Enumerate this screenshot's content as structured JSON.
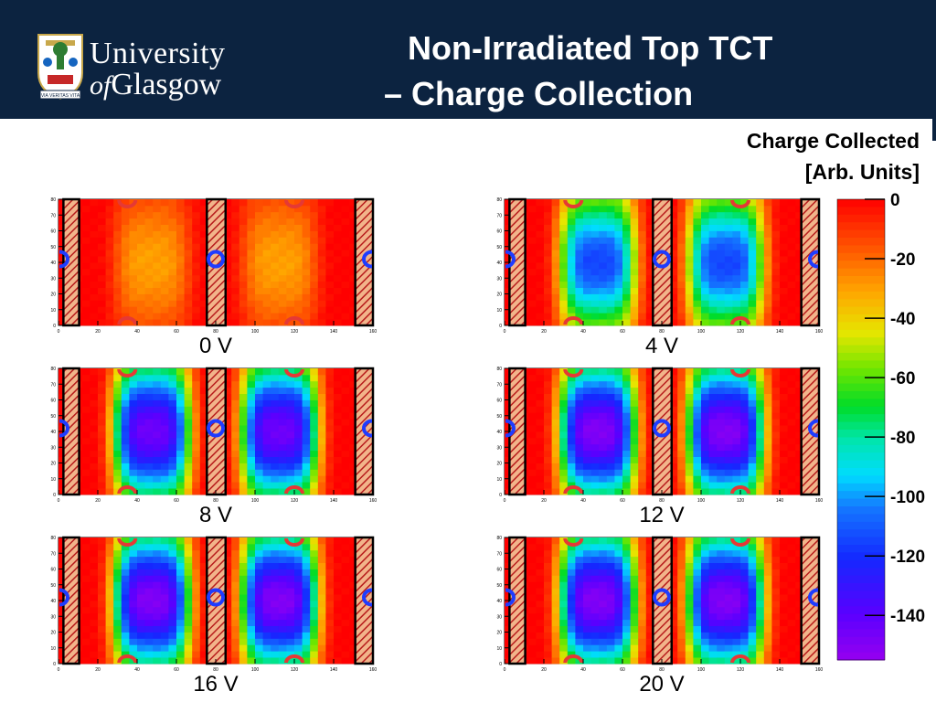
{
  "header": {
    "logo_line1": "University",
    "logo_line2_prefix": "of",
    "logo_line2": "Glasgow",
    "logo_motto": "VIA VERITAS VITA",
    "title_line1": "Non-Irradiated Top TCT",
    "title_line2": "– Charge Collection"
  },
  "chart_data": {
    "type": "heatmap",
    "colorbar": {
      "label_line1": "Charge Collected",
      "label_line2": "[Arb. Units]",
      "range": [
        -155,
        0
      ],
      "ticks": [
        0,
        -20,
        -40,
        -60,
        -80,
        -100,
        -120,
        -140
      ]
    },
    "x_ticks": [
      0,
      20,
      40,
      60,
      80,
      100,
      120,
      140,
      160
    ],
    "y_ticks": [
      0,
      10,
      20,
      30,
      40,
      50,
      60,
      70,
      80
    ],
    "xlim": [
      0,
      160
    ],
    "ylim": [
      0,
      80
    ],
    "panels": [
      {
        "label": "0 V",
        "min_charge": -30
      },
      {
        "label": "4 V",
        "min_charge": -115
      },
      {
        "label": "8 V",
        "min_charge": -145
      },
      {
        "label": "12 V",
        "min_charge": -150
      },
      {
        "label": "16 V",
        "min_charge": -150
      },
      {
        "label": "20 V",
        "min_charge": -150
      }
    ]
  }
}
